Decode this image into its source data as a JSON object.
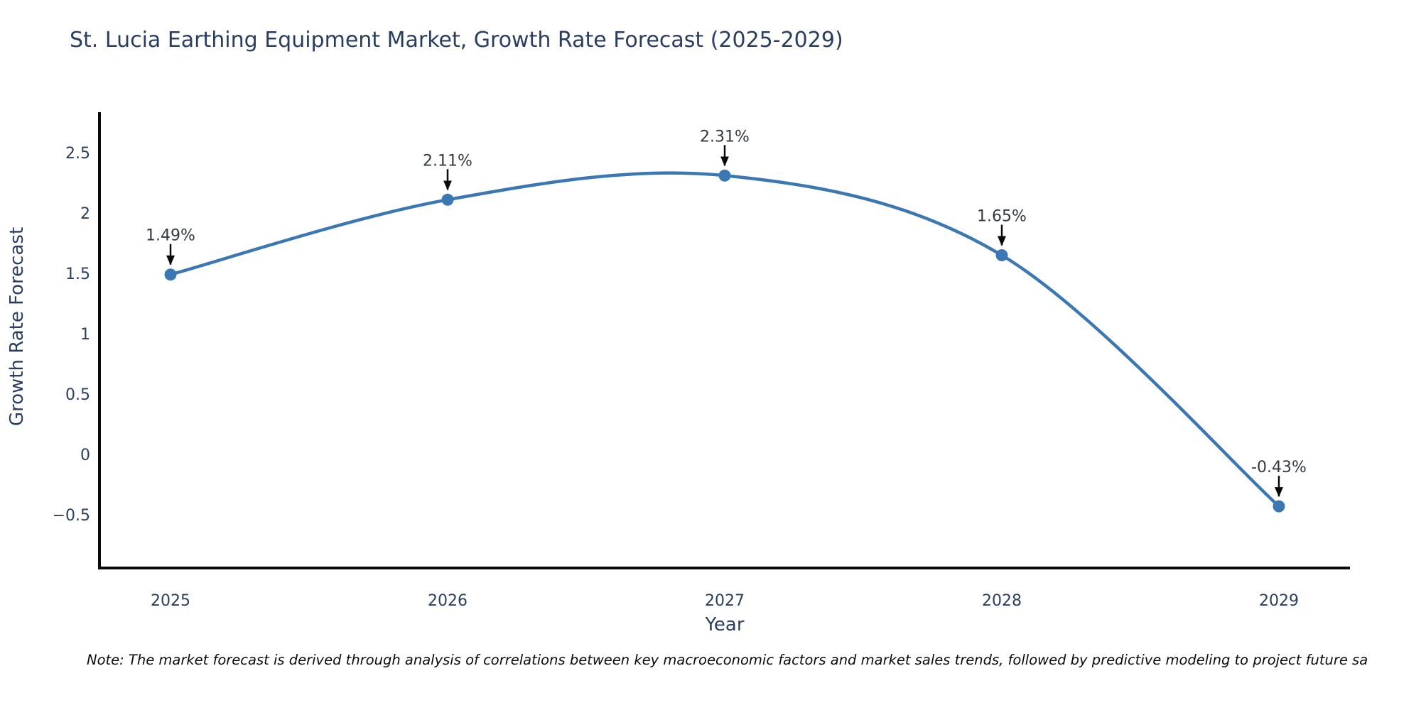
{
  "title": "St. Lucia Earthing Equipment Market, Growth Rate Forecast (2025-2029)",
  "note": "Note: The market forecast is derived through analysis of correlations between key macroeconomic factors and market sales trends, followed by predictive modeling to project future sa",
  "chart_data": {
    "type": "line",
    "title": "St. Lucia Earthing Equipment Market, Growth Rate Forecast (2025-2029)",
    "xlabel": "Year",
    "ylabel": "Growth Rate Forecast",
    "x": [
      2025,
      2026,
      2027,
      2028,
      2029
    ],
    "series": [
      {
        "name": "Growth Rate Forecast",
        "values": [
          1.49,
          2.11,
          2.31,
          1.65,
          -0.43
        ]
      }
    ],
    "point_labels": [
      "1.49%",
      "2.11%",
      "2.31%",
      "1.65%",
      "-0.43%"
    ],
    "yticks": [
      2.5,
      2,
      1.5,
      1,
      0.5,
      0,
      -0.5
    ],
    "ylim": [
      -0.95,
      2.82
    ],
    "line_shape": "spline",
    "grid": false,
    "legend": "none",
    "colors": {
      "line": "#3b77b2",
      "marker": "#3b77b2",
      "axis": "#0a0a0a",
      "tick_text": "#2a3f5f",
      "annotation_text": "#333940",
      "arrow": "#0a0a0a",
      "title_text": "#2a3f5f"
    }
  }
}
